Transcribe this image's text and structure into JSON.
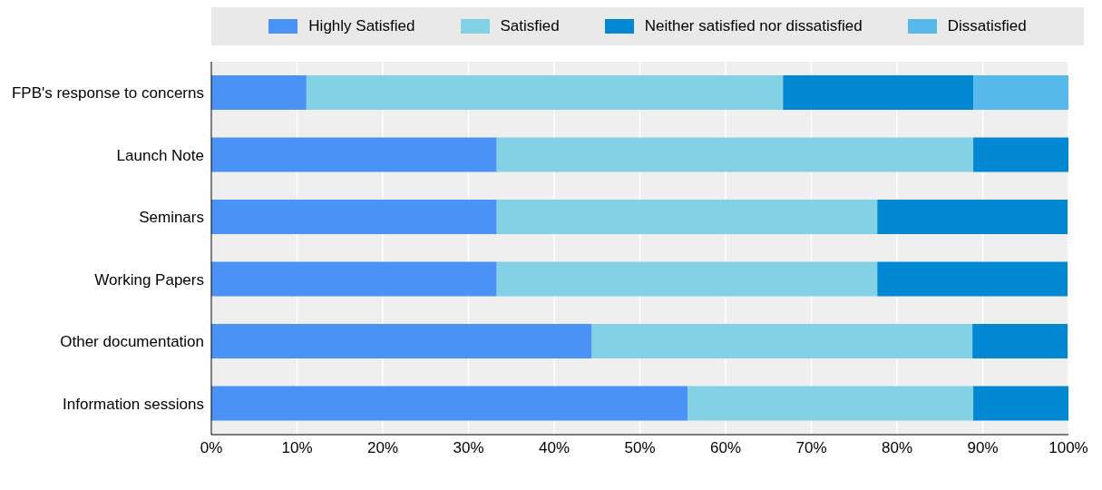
{
  "chart_data": {
    "type": "bar",
    "orientation": "horizontal",
    "stacked": true,
    "categories": [
      "FPB's response to concerns",
      "Launch Note",
      "Seminars",
      "Working Papers",
      "Other documentation",
      "Information sessions"
    ],
    "series": [
      {
        "name": "Highly Satisfied",
        "color": "#4a92f6",
        "values": [
          11.1,
          33.3,
          33.3,
          33.3,
          44.4,
          55.6
        ]
      },
      {
        "name": "Satisfied",
        "color": "#82d1e4",
        "values": [
          55.6,
          55.6,
          44.4,
          44.4,
          44.4,
          33.3
        ]
      },
      {
        "name": "Neither satisfied nor dissatisfied",
        "color": "#0288d2",
        "values": [
          22.2,
          11.1,
          22.2,
          22.2,
          11.1,
          11.1
        ]
      },
      {
        "name": "Dissatisfied",
        "color": "#56b9e9",
        "values": [
          11.1,
          null,
          null,
          null,
          null,
          null
        ]
      }
    ],
    "xlim": [
      0,
      100
    ],
    "xticks": [
      {
        "value": 0,
        "label": "0%"
      },
      {
        "value": 10,
        "label": "10%"
      },
      {
        "value": 20,
        "label": "20%"
      },
      {
        "value": 30,
        "label": "30%"
      },
      {
        "value": 40,
        "label": "40%"
      },
      {
        "value": 50,
        "label": "50%"
      },
      {
        "value": 60,
        "label": "60%"
      },
      {
        "value": 70,
        "label": "70%"
      },
      {
        "value": 80,
        "label": "80%"
      },
      {
        "value": 90,
        "label": "90%"
      },
      {
        "value": 100,
        "label": "100%"
      }
    ],
    "grid": "x",
    "legend": "top"
  }
}
